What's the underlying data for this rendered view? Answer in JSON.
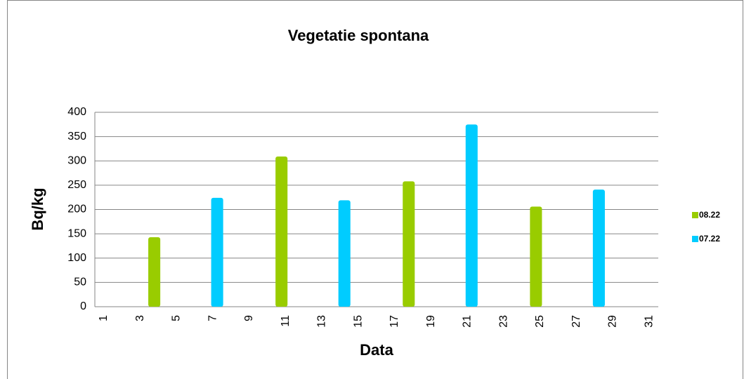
{
  "chart_data": {
    "type": "bar",
    "title": "Vegetatie spontana",
    "x_label": "Data",
    "y_label": "Bq/kg",
    "categories": [
      1,
      null,
      3,
      null,
      5,
      null,
      7,
      null,
      9,
      null,
      11,
      null,
      13,
      null,
      15,
      null,
      17,
      null,
      19,
      null,
      21,
      null,
      23,
      null,
      25,
      null,
      27,
      null,
      29,
      null,
      31
    ],
    "series": [
      {
        "name": "08.22",
        "color": "#99cc00",
        "values": [
          null,
          null,
          null,
          143,
          null,
          null,
          null,
          null,
          null,
          null,
          309,
          null,
          null,
          null,
          null,
          null,
          null,
          258,
          null,
          null,
          null,
          null,
          null,
          null,
          206,
          null,
          null,
          null,
          null,
          null,
          null
        ]
      },
      {
        "name": "07.22",
        "color": "#00ccff",
        "values": [
          null,
          null,
          null,
          null,
          null,
          null,
          224,
          null,
          null,
          null,
          null,
          null,
          null,
          219,
          null,
          null,
          null,
          null,
          null,
          null,
          375,
          null,
          null,
          null,
          null,
          null,
          null,
          241,
          null,
          null,
          null
        ]
      }
    ],
    "ylim": [
      0,
      400
    ],
    "yticks": [
      0,
      50,
      100,
      150,
      200,
      250,
      300,
      350,
      400
    ],
    "grid": true,
    "legend": "right"
  }
}
